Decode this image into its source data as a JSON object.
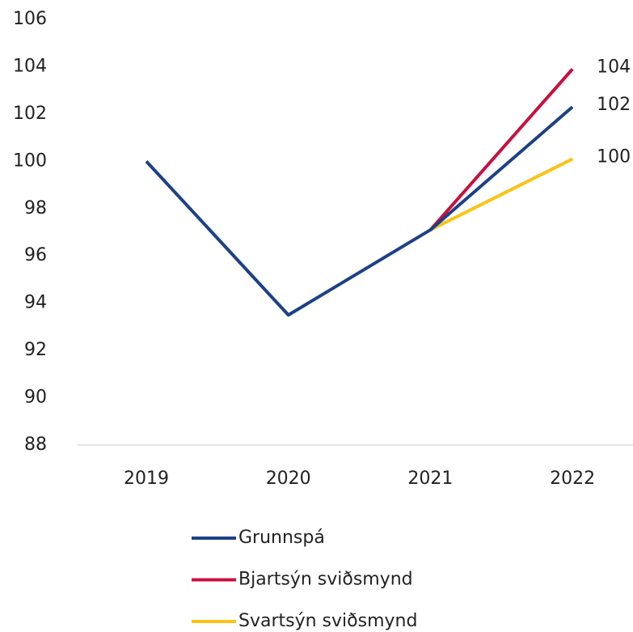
{
  "chart_data": {
    "type": "line",
    "categories": [
      "2019",
      "2020",
      "2021",
      "2022"
    ],
    "series": [
      {
        "name": "Grunnspá",
        "color": "#1d4185",
        "values": [
          100,
          93.5,
          97.1,
          102.3
        ],
        "value_labels": [
          null,
          null,
          null,
          "102"
        ]
      },
      {
        "name": "Bjartsýn sviðsmynd",
        "color": "#c8103f",
        "values": [
          null,
          null,
          97.1,
          103.9
        ],
        "value_labels": [
          null,
          null,
          null,
          "104"
        ]
      },
      {
        "name": "Svartsýn sviðsmynd",
        "color": "#fcc314",
        "values": [
          null,
          null,
          97.1,
          100.1
        ],
        "value_labels": [
          null,
          null,
          null,
          "100"
        ]
      }
    ],
    "ylim": [
      88,
      106
    ],
    "yticks": [
      88,
      90,
      92,
      94,
      96,
      98,
      100,
      102,
      104,
      106
    ],
    "grid": false,
    "legend": "bottom"
  }
}
